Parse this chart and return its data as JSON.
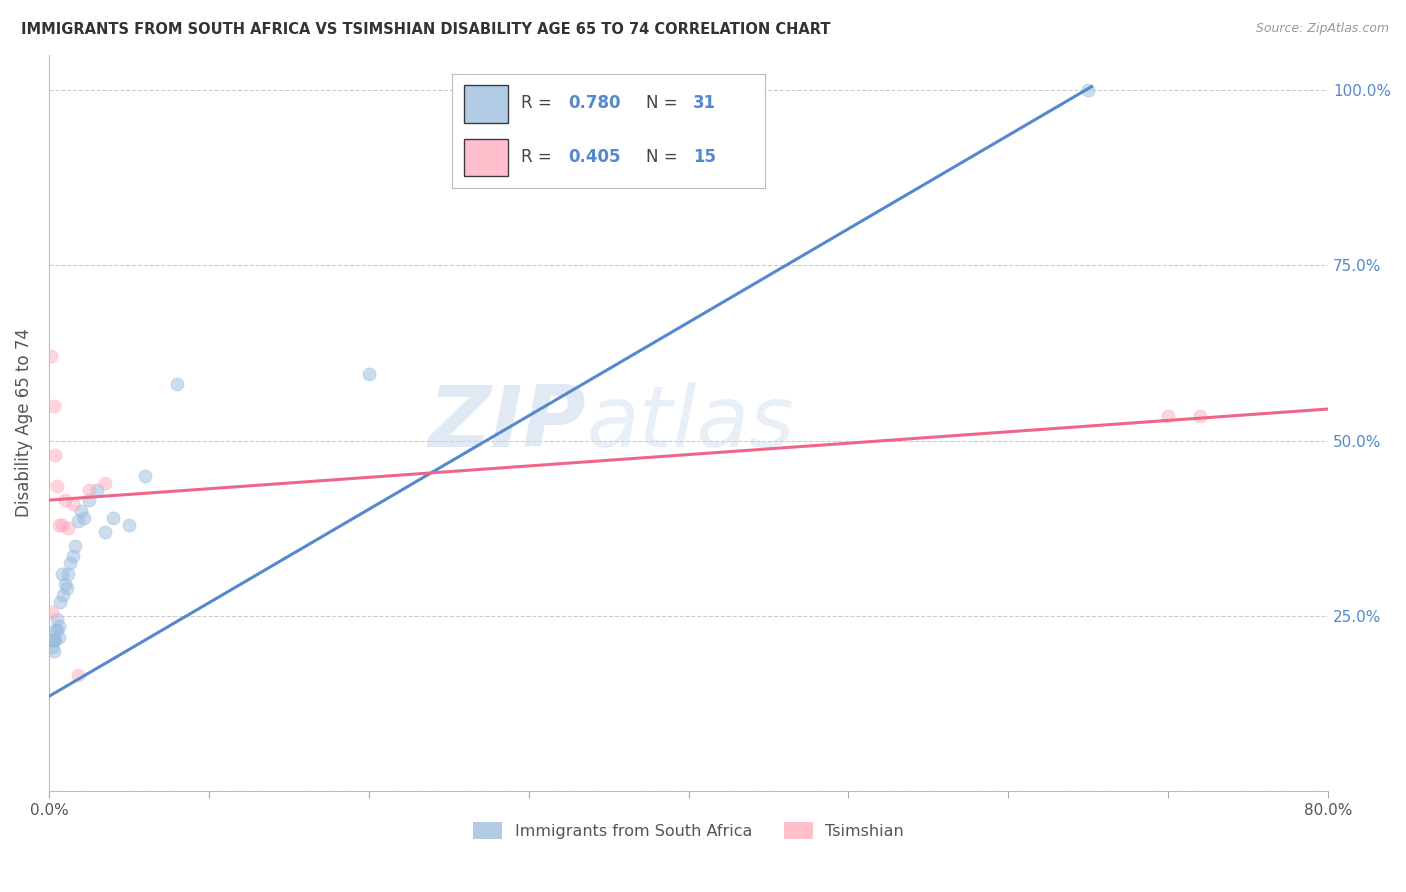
{
  "title": "IMMIGRANTS FROM SOUTH AFRICA VS TSIMSHIAN DISABILITY AGE 65 TO 74 CORRELATION CHART",
  "source": "Source: ZipAtlas.com",
  "ylabel": "Disability Age 65 to 74",
  "xlim": [
    0.0,
    0.8
  ],
  "ylim": [
    0.0,
    1.05
  ],
  "x_ticks": [
    0.0,
    0.1,
    0.2,
    0.3,
    0.4,
    0.5,
    0.6,
    0.7,
    0.8
  ],
  "x_tick_labels": [
    "0.0%",
    "",
    "",
    "",
    "",
    "",
    "",
    "",
    "80.0%"
  ],
  "y_ticks": [
    0.0,
    0.25,
    0.5,
    0.75,
    1.0
  ],
  "y_tick_labels": [
    "",
    "25.0%",
    "50.0%",
    "75.0%",
    "100.0%"
  ],
  "blue_R": "0.780",
  "blue_N": "31",
  "pink_R": "0.405",
  "pink_N": "15",
  "blue_color": "#99BBDD",
  "pink_color": "#FFAABB",
  "blue_line_color": "#5588CC",
  "pink_line_color": "#EE6688",
  "legend_label_blue": "Immigrants from South Africa",
  "legend_label_pink": "Tsimshian",
  "watermark_zip": "ZIP",
  "watermark_atlas": "atlas",
  "right_tick_color": "#5588CC",
  "blue_x": [
    0.002,
    0.002,
    0.003,
    0.003,
    0.004,
    0.004,
    0.005,
    0.005,
    0.006,
    0.006,
    0.007,
    0.008,
    0.009,
    0.01,
    0.011,
    0.012,
    0.013,
    0.015,
    0.016,
    0.018,
    0.02,
    0.022,
    0.025,
    0.03,
    0.035,
    0.04,
    0.05,
    0.06,
    0.08,
    0.2,
    0.65
  ],
  "blue_y": [
    0.215,
    0.205,
    0.215,
    0.2,
    0.23,
    0.215,
    0.23,
    0.245,
    0.235,
    0.22,
    0.27,
    0.31,
    0.28,
    0.295,
    0.29,
    0.31,
    0.325,
    0.335,
    0.35,
    0.385,
    0.4,
    0.39,
    0.415,
    0.43,
    0.37,
    0.39,
    0.38,
    0.45,
    0.58,
    0.595,
    1.0
  ],
  "pink_x": [
    0.001,
    0.002,
    0.003,
    0.004,
    0.005,
    0.006,
    0.008,
    0.01,
    0.012,
    0.015,
    0.018,
    0.025,
    0.035,
    0.7,
    0.72
  ],
  "pink_y": [
    0.62,
    0.255,
    0.55,
    0.48,
    0.435,
    0.38,
    0.38,
    0.415,
    0.375,
    0.41,
    0.165,
    0.43,
    0.44,
    0.535,
    0.535
  ],
  "blue_trendline_x": [
    0.0,
    0.652
  ],
  "blue_trendline_y": [
    0.135,
    1.005
  ],
  "pink_trendline_x": [
    0.0,
    0.8
  ],
  "pink_trendline_y": [
    0.415,
    0.545
  ],
  "background_color": "#FFFFFF",
  "grid_color": "#CCCCCC",
  "title_color": "#333333",
  "axis_label_color": "#555555",
  "marker_size": 90,
  "marker_alpha": 0.5,
  "marker_lw": 0.5
}
